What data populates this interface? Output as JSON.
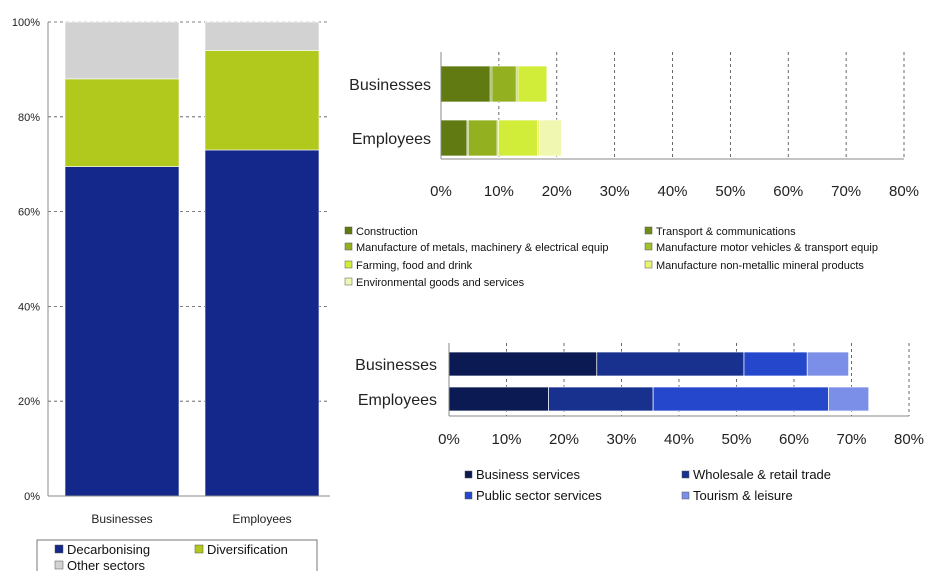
{
  "chart_data": [
    {
      "type": "bar",
      "stacked": true,
      "orientation": "vertical",
      "percent": true,
      "categories": [
        "Businesses",
        "Employees"
      ],
      "ylim": [
        0,
        100
      ],
      "y_ticks": [
        "0%",
        "20%",
        "40%",
        "60%",
        "80%",
        "100%"
      ],
      "grid": "horizontal dashed",
      "legend_position": "bottom",
      "series": [
        {
          "name": "Decarbonising",
          "values": [
            69.5,
            73
          ],
          "color": "#13288a"
        },
        {
          "name": "Diversification",
          "values": [
            18.5,
            21
          ],
          "color": "#b1c81d"
        },
        {
          "name": "Other sectors",
          "values": [
            12,
            6
          ],
          "color": "#d2d2d2"
        }
      ]
    },
    {
      "type": "bar",
      "stacked": true,
      "orientation": "horizontal",
      "categories": [
        "Businesses",
        "Employees"
      ],
      "xlim": [
        0,
        80
      ],
      "x_ticks": [
        "0%",
        "10%",
        "20%",
        "30%",
        "40%",
        "50%",
        "60%",
        "70%",
        "80%"
      ],
      "grid": "vertical dashed",
      "legend_position": "bottom",
      "series": [
        {
          "name": "Construction",
          "values": [
            8.5,
            4.5
          ],
          "color": "#617a12"
        },
        {
          "name": "Transport & communications",
          "values": [
            0.3,
            0.2
          ],
          "color": "#6e8e16"
        },
        {
          "name": "Manufacture of metals, machinery & electrical equip",
          "values": [
            4.2,
            5
          ],
          "color": "#93b021"
        },
        {
          "name": "Manufacture  motor vehicles & transport equip",
          "values": [
            0.3,
            0.2
          ],
          "color": "#a2c22b"
        },
        {
          "name": "Farming, food and drink",
          "values": [
            5,
            6.8
          ],
          "color": "#d2ec3a"
        },
        {
          "name": "Manufacture  non-metallic mineral products",
          "values": [
            0,
            0.3
          ],
          "color": "#e6f46e"
        },
        {
          "name": "Environmental goods and services",
          "values": [
            0,
            3.8
          ],
          "color": "#eff7b0"
        }
      ]
    },
    {
      "type": "bar",
      "stacked": true,
      "orientation": "horizontal",
      "categories": [
        "Businesses",
        "Employees"
      ],
      "xlim": [
        0,
        80
      ],
      "x_ticks": [
        "0%",
        "10%",
        "20%",
        "30%",
        "40%",
        "50%",
        "60%",
        "70%",
        "80%"
      ],
      "grid": "vertical dashed",
      "legend_position": "bottom",
      "series": [
        {
          "name": "Business services",
          "values": [
            25.7,
            17.3
          ],
          "color": "#0b1a52"
        },
        {
          "name": "Wholesale & retail trade",
          "values": [
            25.6,
            18.2
          ],
          "color": "#18318f"
        },
        {
          "name": "Public sector services",
          "values": [
            11,
            30.5
          ],
          "color": "#2547cc"
        },
        {
          "name": "Tourism & leisure",
          "values": [
            7.2,
            7
          ],
          "color": "#7b8ee8"
        }
      ]
    }
  ]
}
